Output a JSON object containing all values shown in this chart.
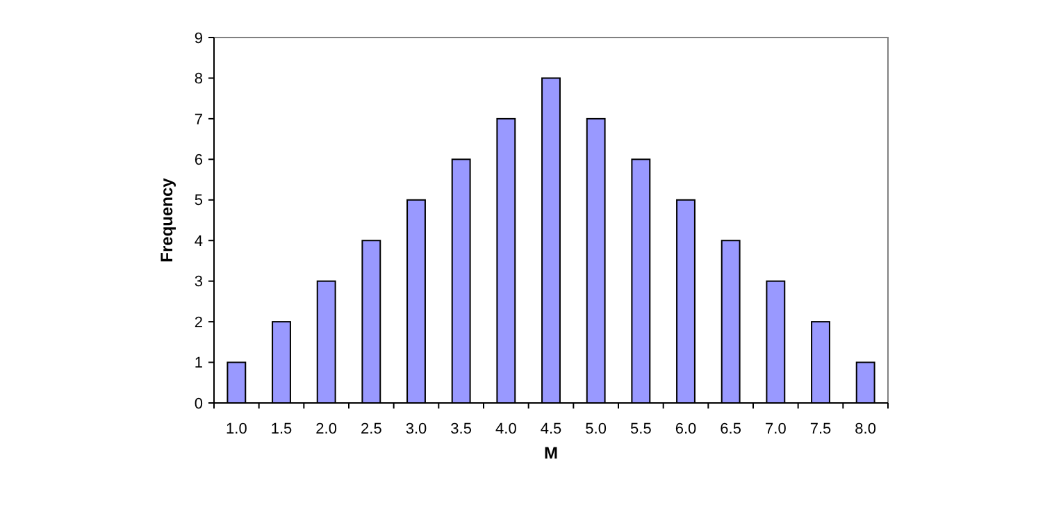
{
  "chart_data": {
    "type": "bar",
    "xlabel": "M",
    "ylabel": "Frequency",
    "categories": [
      "1.0",
      "1.5",
      "2.0",
      "2.5",
      "3.0",
      "3.5",
      "4.0",
      "4.5",
      "5.0",
      "5.5",
      "6.0",
      "6.5",
      "7.0",
      "7.5",
      "8.0"
    ],
    "values": [
      1,
      2,
      3,
      4,
      5,
      6,
      7,
      8,
      7,
      6,
      5,
      4,
      3,
      2,
      1
    ],
    "color": "#9999ff",
    "ylim": [
      0,
      9
    ],
    "yticks": [
      0,
      1,
      2,
      3,
      4,
      5,
      6,
      7,
      8,
      9
    ],
    "grid": false
  }
}
